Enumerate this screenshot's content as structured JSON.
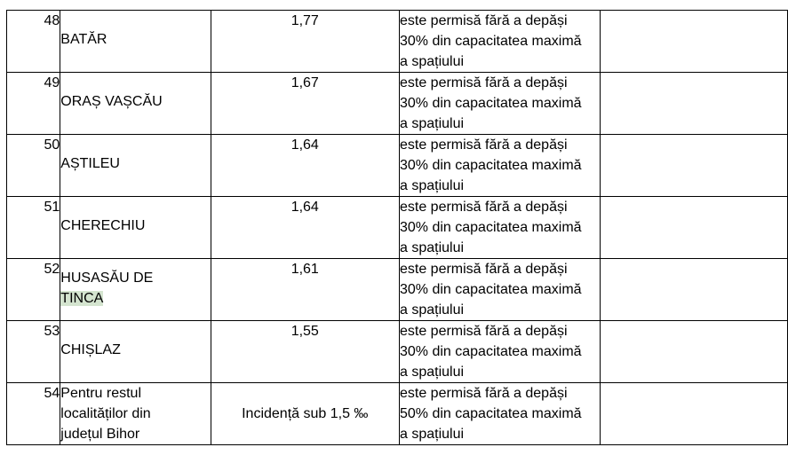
{
  "table": {
    "rows": [
      {
        "nr": "48",
        "locality": "BATĂR",
        "value": "1,77",
        "condition": [
          "este permisă fără a depăși",
          "30% din capacitatea maximă",
          "a spațiului"
        ]
      },
      {
        "nr": "49",
        "locality": "ORAȘ VAȘCĂU",
        "value": "1,67",
        "condition": [
          "este permisă fără a depăși",
          "30% din capacitatea maximă",
          "a spațiului"
        ]
      },
      {
        "nr": "50",
        "locality": "AȘTILEU",
        "value": "1,64",
        "condition": [
          "este permisă fără a depăși",
          "30% din capacitatea maximă",
          "a spațiului"
        ]
      },
      {
        "nr": "51",
        "locality": "CHERECHIU",
        "value": "1,64",
        "condition": [
          "este permisă fără a depăși",
          "30% din capacitatea maximă",
          "a spațiului"
        ]
      },
      {
        "nr": "52",
        "locality_lines": [
          "HUSASĂU DE",
          "TINCA"
        ],
        "value": "1,61",
        "condition": [
          "este permisă fără a depăși",
          "30% din capacitatea maximă",
          "a spațiului"
        ]
      },
      {
        "nr": "53",
        "locality": "CHIȘLAZ",
        "value": "1,55",
        "condition": [
          "este permisă fără a depăși",
          "30% din capacitatea maximă",
          "a spațiului"
        ]
      },
      {
        "nr": "54",
        "locality_lines": [
          "Pentru restul",
          "localităților din",
          "județul Bihor"
        ],
        "value": "Incidență sub 1,5 ‰",
        "condition": [
          "este permisă fără a depăși",
          "50% din capacitatea maximă",
          "a spațiului"
        ]
      }
    ]
  }
}
